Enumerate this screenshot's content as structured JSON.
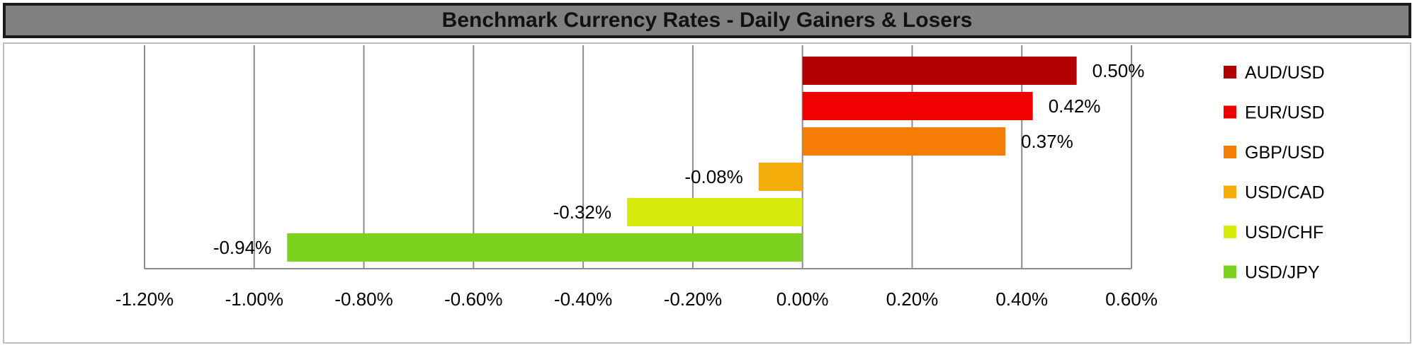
{
  "header": {
    "title": "Benchmark Currency Rates - Daily Gainers & Losers"
  },
  "chart_data": {
    "type": "bar",
    "orientation": "horizontal",
    "title": "Benchmark Currency Rates - Daily Gainers & Losers",
    "xlabel": "",
    "ylabel": "",
    "xlim": [
      -1.2,
      0.6
    ],
    "grid": true,
    "legend_position": "right",
    "ticks": [
      {
        "value": -1.2,
        "label": "-1.20%"
      },
      {
        "value": -1.0,
        "label": "-1.00%"
      },
      {
        "value": -0.8,
        "label": "-0.80%"
      },
      {
        "value": -0.6,
        "label": "-0.60%"
      },
      {
        "value": -0.4,
        "label": "-0.40%"
      },
      {
        "value": -0.2,
        "label": "-0.20%"
      },
      {
        "value": 0.0,
        "label": "0.00%"
      },
      {
        "value": 0.2,
        "label": "0.20%"
      },
      {
        "value": 0.4,
        "label": "0.40%"
      },
      {
        "value": 0.6,
        "label": "0.60%"
      }
    ],
    "series": [
      {
        "name": "AUD/USD",
        "value": 0.5,
        "label": "0.50%",
        "color": "#b30000"
      },
      {
        "name": "EUR/USD",
        "value": 0.42,
        "label": "0.42%",
        "color": "#f00000"
      },
      {
        "name": "GBP/USD",
        "value": 0.37,
        "label": "0.37%",
        "color": "#f47c07"
      },
      {
        "name": "USD/CAD",
        "value": -0.08,
        "label": "-0.08%",
        "color": "#f5ad0a"
      },
      {
        "name": "USD/CHF",
        "value": -0.32,
        "label": "-0.32%",
        "color": "#d7ec0c"
      },
      {
        "name": "USD/JPY",
        "value": -0.94,
        "label": "-0.94%",
        "color": "#7dd220"
      }
    ]
  }
}
